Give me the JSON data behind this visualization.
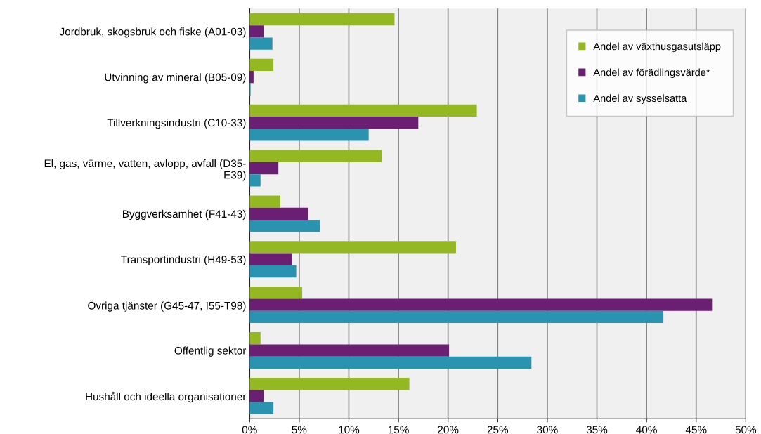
{
  "chart_data": {
    "type": "bar",
    "orientation": "horizontal",
    "categories": [
      "Jordbruk, skogsbruk och fiske (A01-03)",
      "Utvinning av mineral (B05-09)",
      "Tillverkningsindustri (C10-33)",
      "El, gas, värme, vatten, avlopp, avfall (D35-\nE39)",
      "Byggverksamhet (F41-43)",
      "Transportindustri (H49-53)",
      "Övriga tjänster (G45-47, I55-T98)",
      "Offentlig sektor",
      "Hushåll och ideella organisationer"
    ],
    "series": [
      {
        "name": "Andel av växthusgasutsläpp",
        "color": "#94b821",
        "values": [
          14.6,
          2.4,
          22.9,
          13.3,
          3.1,
          20.8,
          5.3,
          1.1,
          16.1
        ]
      },
      {
        "name": "Andel av förädlingsvärde*",
        "color": "#6b1f73",
        "values": [
          1.4,
          0.4,
          17.0,
          2.9,
          5.9,
          4.3,
          46.6,
          20.1,
          1.4
        ]
      },
      {
        "name": "Andel av sysselsatta",
        "color": "#2a94b0",
        "values": [
          2.3,
          0.1,
          12.0,
          1.1,
          7.1,
          4.7,
          41.7,
          28.4,
          2.4
        ]
      }
    ],
    "xlim": [
      0,
      50
    ],
    "xticks": [
      {
        "value": 0,
        "label": "0%"
      },
      {
        "value": 5,
        "label": "5%"
      },
      {
        "value": 10,
        "label": "10%"
      },
      {
        "value": 15,
        "label": "15%"
      },
      {
        "value": 20,
        "label": "20%"
      },
      {
        "value": 25,
        "label": "25%"
      },
      {
        "value": 30,
        "label": "30%"
      },
      {
        "value": 35,
        "label": "35%"
      },
      {
        "value": 40,
        "label": "40%"
      },
      {
        "value": 45,
        "label": "45%"
      },
      {
        "value": 50,
        "label": "50%"
      }
    ],
    "grid": "x",
    "legend": "top right"
  }
}
